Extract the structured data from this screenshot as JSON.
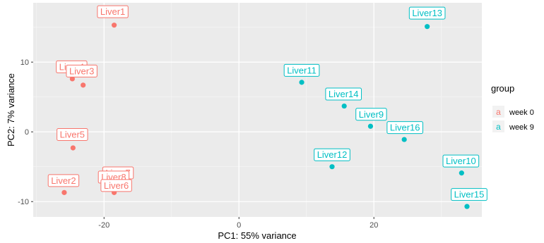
{
  "chart_data": {
    "type": "scatter",
    "title": "",
    "xlabel": "PC1: 55% variance",
    "ylabel": "PC2: 7% variance",
    "xlim": [
      -30.5,
      36
    ],
    "ylim": [
      -12.2,
      18.5
    ],
    "x_ticks": [
      -20,
      0,
      20
    ],
    "y_ticks": [
      -10,
      0,
      10
    ],
    "grid": true,
    "legend": {
      "title": "group",
      "position": "right",
      "key_glyph": "a"
    },
    "series": [
      {
        "name": "week 0",
        "color": "#F8766D",
        "points": [
          {
            "label": "Liver1",
            "x": -18.5,
            "y": 15.3
          },
          {
            "label": "Liver4",
            "x": -24.7,
            "y": 7.6
          },
          {
            "label": "Liver3",
            "x": -23.1,
            "y": 6.7
          },
          {
            "label": "Liver5",
            "x": -24.6,
            "y": -2.3
          },
          {
            "label": "Liver7",
            "x": -19.5,
            "y": -7.6
          },
          {
            "label": "Liver8",
            "x": -19.2,
            "y": -7.8
          },
          {
            "label": "Liver6",
            "x": -18.5,
            "y": -8.7
          },
          {
            "label": "Liver2",
            "x": -25.9,
            "y": -8.7
          }
        ]
      },
      {
        "name": "week 9",
        "color": "#00BFC4",
        "points": [
          {
            "label": "Liver13",
            "x": 27.9,
            "y": 15.1
          },
          {
            "label": "Liver11",
            "x": 9.3,
            "y": 7.1
          },
          {
            "label": "Liver14",
            "x": 15.6,
            "y": 3.7
          },
          {
            "label": "Liver9",
            "x": 19.5,
            "y": 0.8
          },
          {
            "label": "Liver16",
            "x": 24.5,
            "y": -1.1
          },
          {
            "label": "Liver12",
            "x": 13.8,
            "y": -5.0
          },
          {
            "label": "Liver10",
            "x": 33.0,
            "y": -5.9
          },
          {
            "label": "Liver15",
            "x": 33.8,
            "y": -10.7
          }
        ]
      }
    ]
  }
}
